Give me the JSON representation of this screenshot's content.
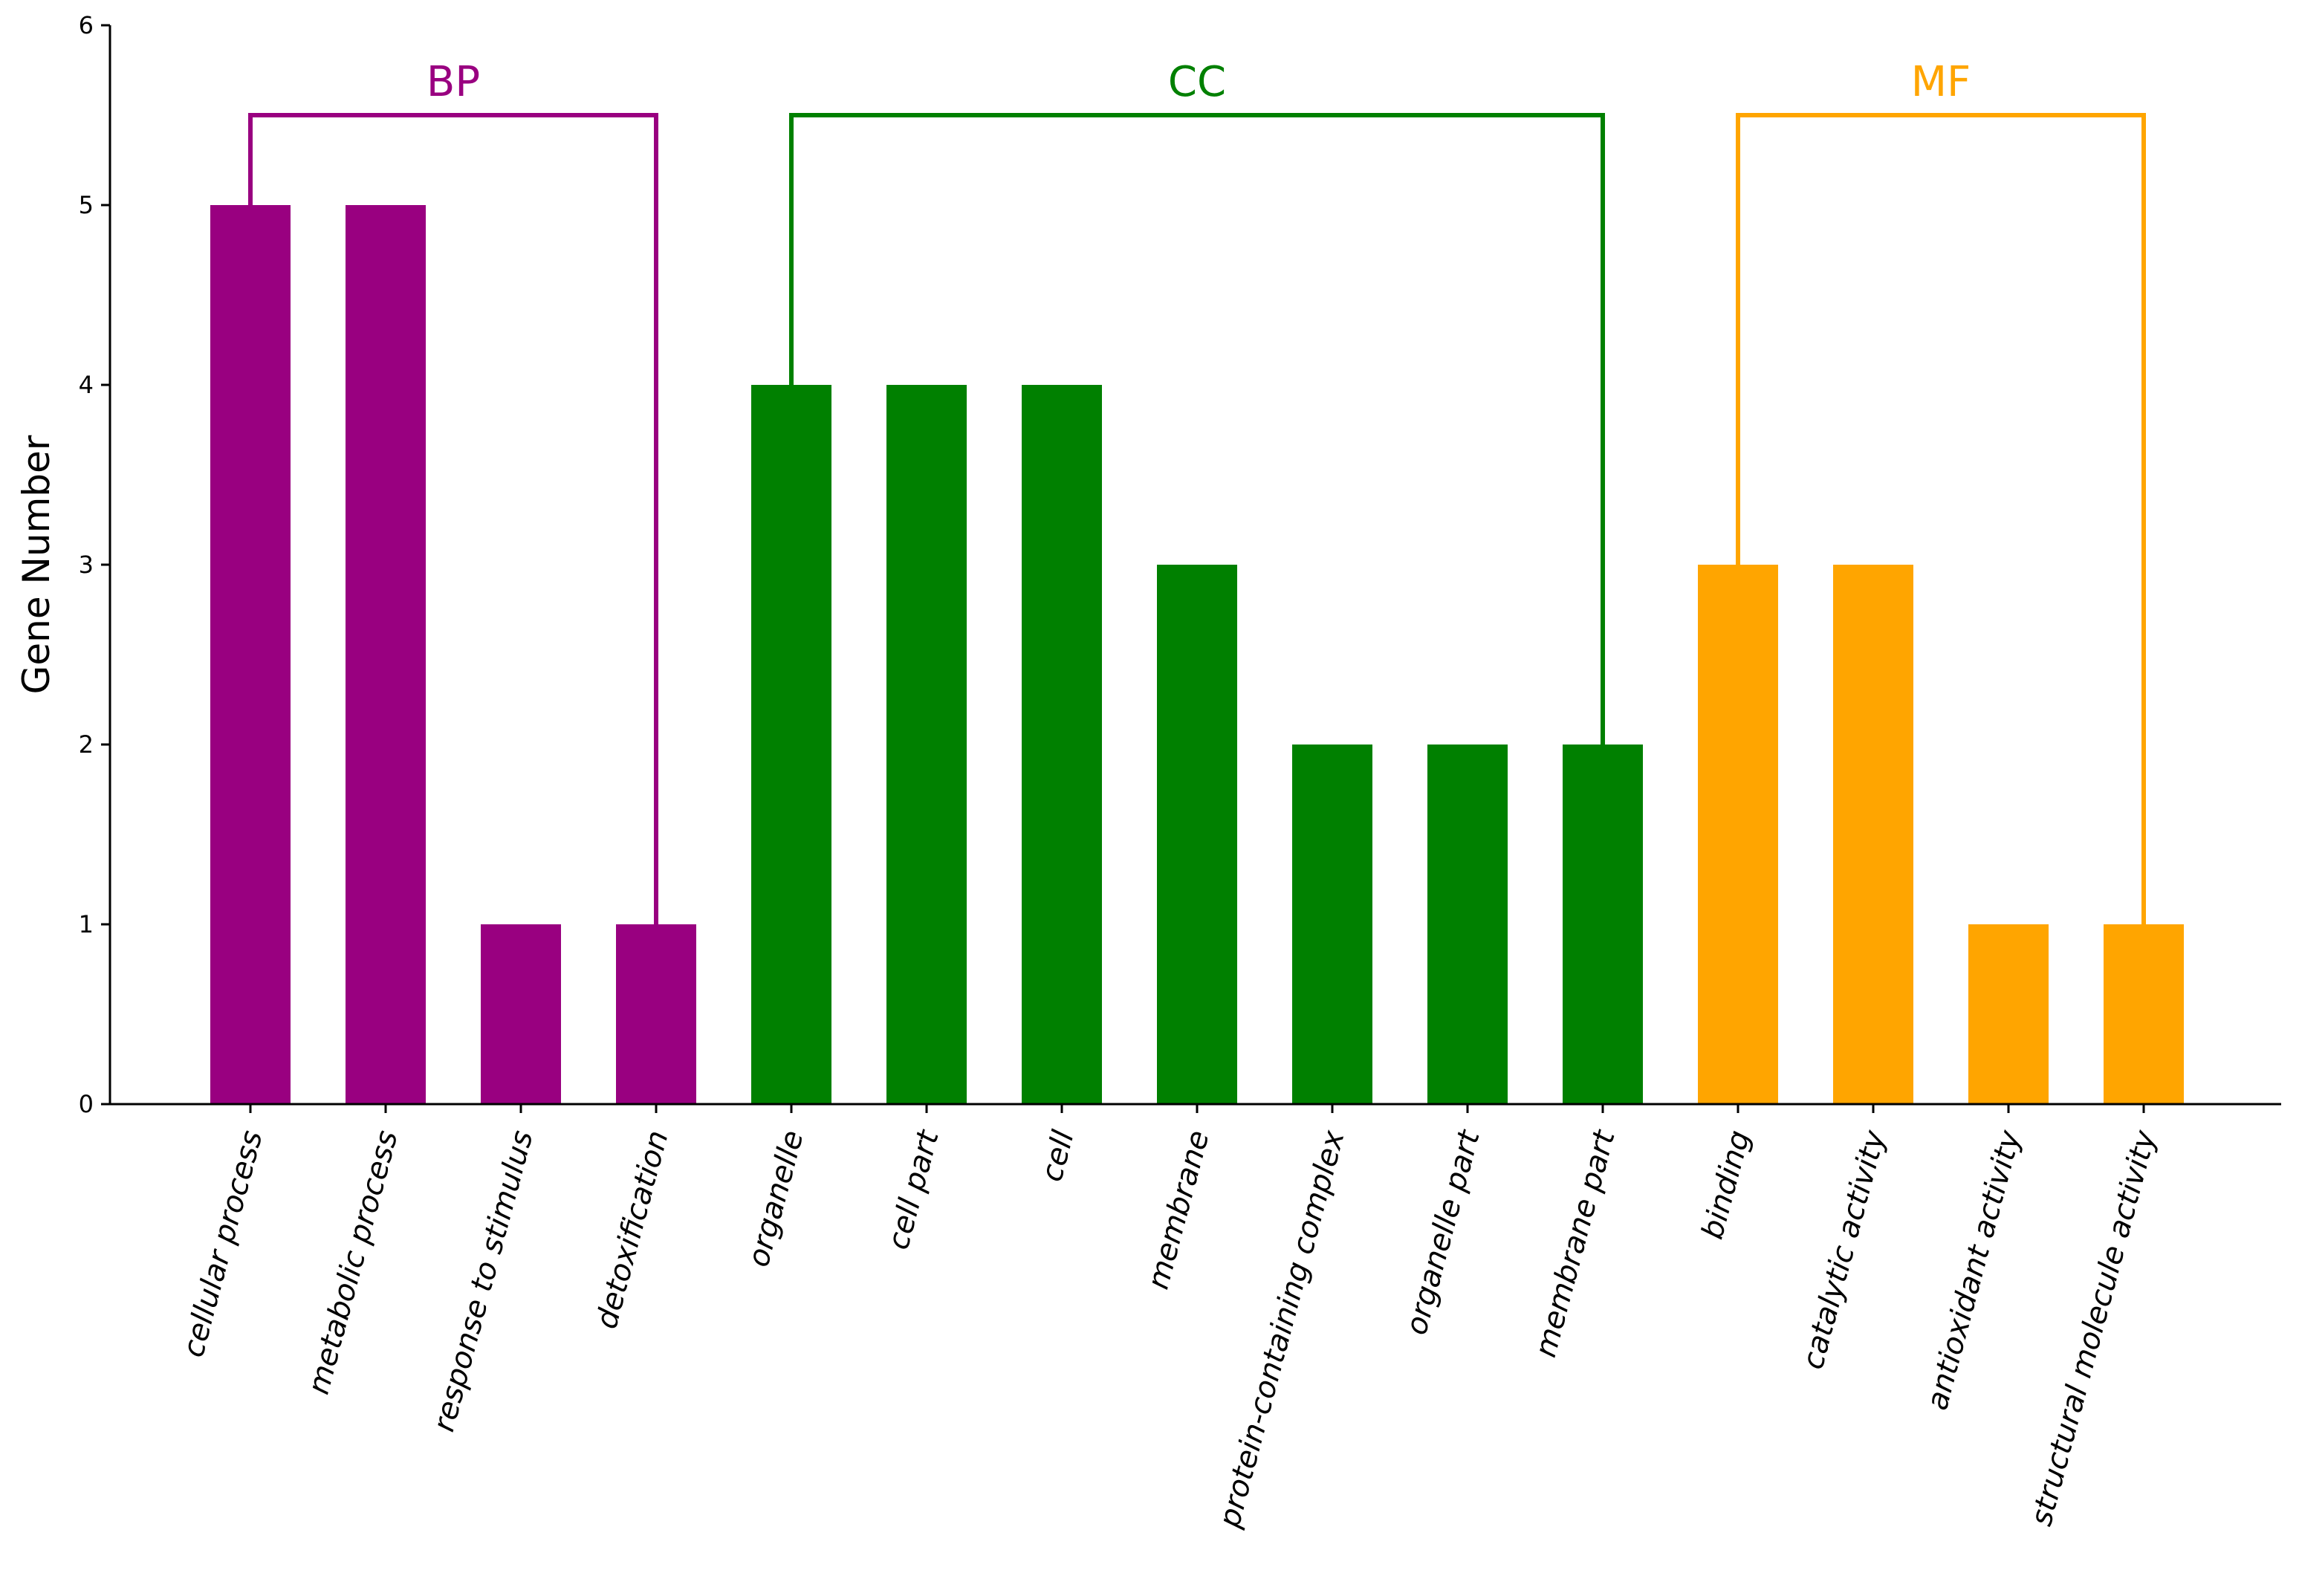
{
  "chart_data": {
    "type": "bar",
    "title": "",
    "xlabel": "",
    "ylabel": "Gene Number",
    "ylim": [
      0,
      6
    ],
    "yticks": [
      0,
      1,
      2,
      3,
      4,
      5,
      6
    ],
    "grid": false,
    "categories": [
      "cellular process",
      "metabolic process",
      "response to stimulus",
      "detoxification",
      "organelle",
      "cell part",
      "cell",
      "membrane",
      "protein-containing complex",
      "organelle part",
      "membrane part",
      "binding",
      "catalytic activity",
      "antioxidant activity",
      "structural molecule activity"
    ],
    "values": [
      5,
      5,
      1,
      1,
      4,
      4,
      4,
      3,
      2,
      2,
      2,
      3,
      3,
      1,
      1
    ],
    "groups": [
      {
        "name": "BP",
        "color": "#990080",
        "start": 0,
        "end": 3,
        "bracket_level": 5.5
      },
      {
        "name": "CC",
        "color": "#008000",
        "start": 4,
        "end": 10,
        "bracket_level": 5.5
      },
      {
        "name": "MF",
        "color": "#FFA500",
        "start": 11,
        "end": 14,
        "bracket_level": 5.5
      }
    ]
  }
}
